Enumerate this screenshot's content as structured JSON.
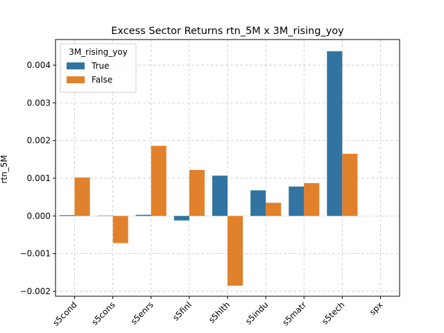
{
  "chart_data": {
    "type": "bar",
    "title": "Excess Sector Returns rtn_5M x 3M_rising_yoy",
    "xlabel": "",
    "ylabel": "rtn_5M",
    "categories": [
      "s5cond",
      "s5cons",
      "s5enrs",
      "s5finl",
      "s5hlth",
      "s5indu",
      "s5matr",
      "s5tech",
      "spx"
    ],
    "series": [
      {
        "name": "True",
        "color": "#3274a1",
        "values": [
          2e-05,
          1e-05,
          3e-05,
          -0.00012,
          0.00107,
          0.00068,
          0.00078,
          0.00437,
          0
        ]
      },
      {
        "name": "False",
        "color": "#e1812c",
        "values": [
          0.00102,
          -0.00072,
          0.00186,
          0.00122,
          -0.00185,
          0.00035,
          0.00087,
          0.00165,
          0
        ]
      }
    ],
    "ylim": [
      -0.00213,
      0.00468
    ],
    "yticks": [
      -0.002,
      -0.001,
      0.0,
      0.001,
      0.002,
      0.003,
      0.004
    ],
    "ytick_labels": [
      "−0.002",
      "−0.001",
      "0.000",
      "0.001",
      "0.002",
      "0.003",
      "0.004"
    ],
    "legend": {
      "title": "3M_rising_yoy",
      "location": "top-left"
    },
    "grid": true
  }
}
